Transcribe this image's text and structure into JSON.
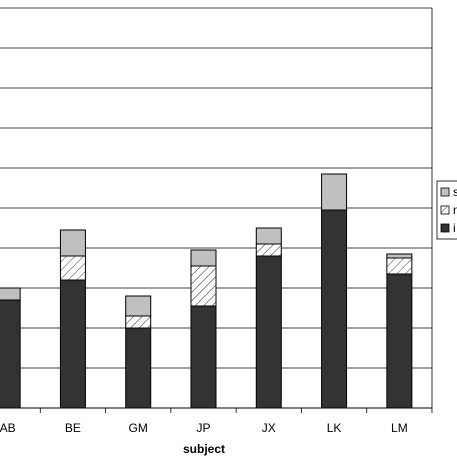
{
  "chart_data": {
    "type": "bar",
    "stacked": true,
    "categories": [
      "AB",
      "BE",
      "GM",
      "JP",
      "JX",
      "LK",
      "LM"
    ],
    "series": [
      {
        "name": "i",
        "values": [
          2.7,
          3.2,
          2.0,
          2.55,
          3.8,
          4.95,
          3.35
        ],
        "color": "#333333",
        "pattern": "solid"
      },
      {
        "name": "n",
        "values": [
          0.0,
          0.6,
          0.3,
          1.0,
          0.3,
          0.0,
          0.4
        ],
        "color": "#ffffff",
        "pattern": "hatch"
      },
      {
        "name": "s",
        "values": [
          0.3,
          0.65,
          0.5,
          0.4,
          0.4,
          0.9,
          0.1
        ],
        "color": "#c0c0c0",
        "pattern": "solid"
      }
    ],
    "xlabel": "subject",
    "ylabel": "",
    "ylim": [
      0,
      10
    ],
    "grid": true,
    "legend_position": "right"
  }
}
